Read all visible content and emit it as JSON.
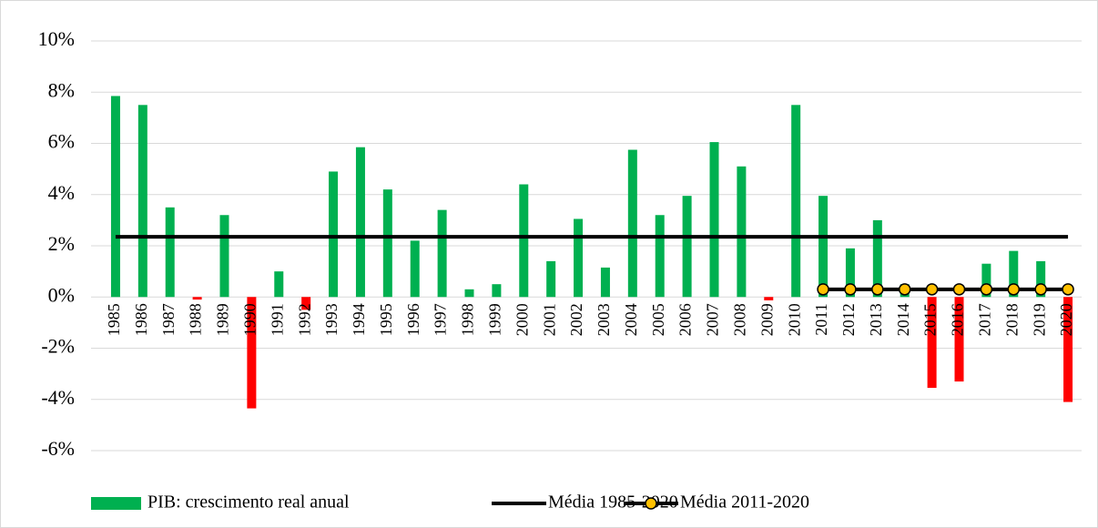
{
  "chart_data": {
    "type": "bar",
    "categories": [
      "1985",
      "1986",
      "1987",
      "1988",
      "1989",
      "1990",
      "1991",
      "1992",
      "1993",
      "1994",
      "1995",
      "1996",
      "1997",
      "1998",
      "1999",
      "2000",
      "2001",
      "2002",
      "2003",
      "2004",
      "2005",
      "2006",
      "2007",
      "2008",
      "2009",
      "2010",
      "2011",
      "2012",
      "2013",
      "2014",
      "2015",
      "2016",
      "2017",
      "2018",
      "2019",
      "2020"
    ],
    "series": [
      {
        "name": "PIB: crescimento real anual",
        "type": "bar",
        "color": "#00b050",
        "negative_color": "#ff0000",
        "values": [
          7.85,
          7.5,
          3.5,
          -0.1,
          3.2,
          -4.35,
          1.0,
          -0.5,
          4.9,
          5.85,
          4.2,
          2.2,
          3.4,
          0.3,
          0.5,
          4.4,
          1.4,
          3.05,
          1.15,
          5.75,
          3.2,
          3.95,
          6.05,
          5.1,
          -0.13,
          7.5,
          3.95,
          1.9,
          3.0,
          0.5,
          -3.55,
          -3.3,
          1.3,
          1.8,
          1.4,
          -4.1
        ]
      },
      {
        "name": "Média 1985-2020",
        "type": "line",
        "color": "#000000",
        "values": [
          2.35,
          2.35,
          2.35,
          2.35,
          2.35,
          2.35,
          2.35,
          2.35,
          2.35,
          2.35,
          2.35,
          2.35,
          2.35,
          2.35,
          2.35,
          2.35,
          2.35,
          2.35,
          2.35,
          2.35,
          2.35,
          2.35,
          2.35,
          2.35,
          2.35,
          2.35,
          2.35,
          2.35,
          2.35,
          2.35,
          2.35,
          2.35,
          2.35,
          2.35,
          2.35,
          2.35
        ]
      },
      {
        "name": "Média 2011-2020",
        "type": "line",
        "color": "#000000",
        "marker_color": "#ffc000",
        "values": [
          null,
          null,
          null,
          null,
          null,
          null,
          null,
          null,
          null,
          null,
          null,
          null,
          null,
          null,
          null,
          null,
          null,
          null,
          null,
          null,
          null,
          null,
          null,
          null,
          null,
          null,
          0.3,
          0.3,
          0.3,
          0.3,
          0.3,
          0.3,
          0.3,
          0.3,
          0.3,
          0.3
        ]
      }
    ],
    "ylim": [
      -6,
      10
    ],
    "yticks": [
      {
        "value": -6,
        "label": "-6%"
      },
      {
        "value": -4,
        "label": "-4%"
      },
      {
        "value": -2,
        "label": "-2%"
      },
      {
        "value": 0,
        "label": "0%"
      },
      {
        "value": 2,
        "label": "2%"
      },
      {
        "value": 4,
        "label": "4%"
      },
      {
        "value": 6,
        "label": "6%"
      },
      {
        "value": 8,
        "label": "8%"
      },
      {
        "value": 10,
        "label": "10%"
      }
    ],
    "grid": true,
    "legend": "bottom"
  }
}
